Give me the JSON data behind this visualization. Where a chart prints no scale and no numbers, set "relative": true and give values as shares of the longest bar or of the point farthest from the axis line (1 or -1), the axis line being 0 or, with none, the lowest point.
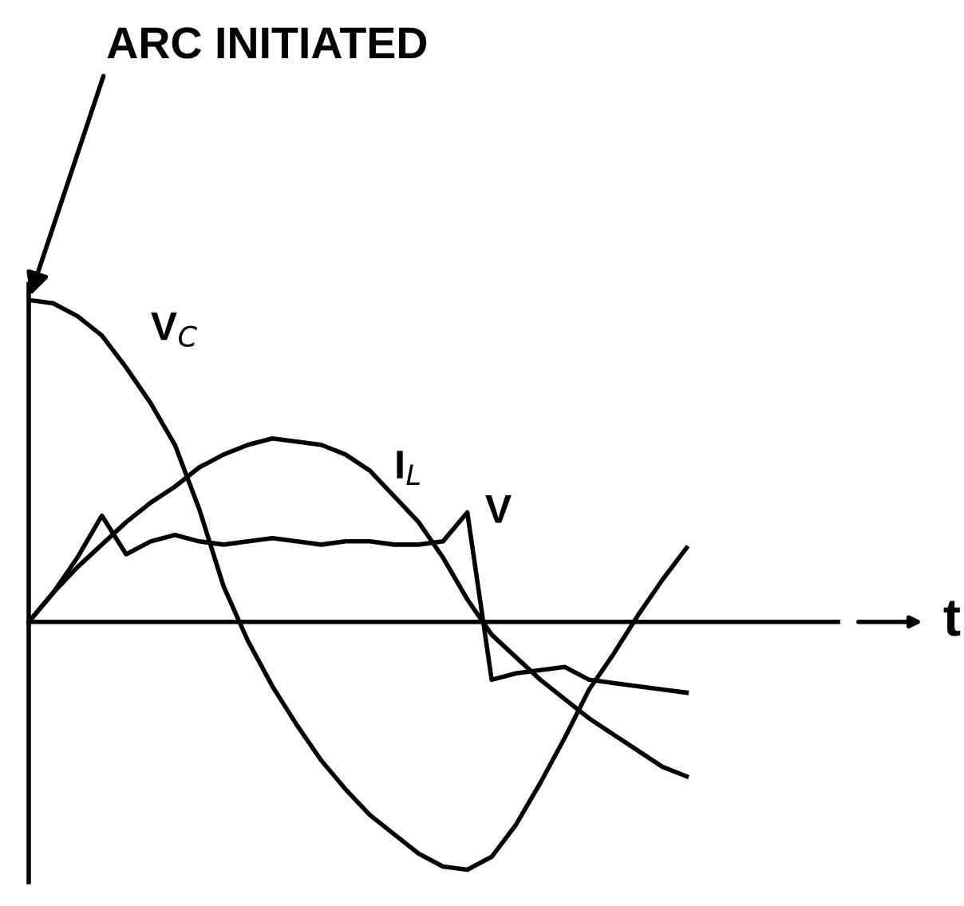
{
  "chart_data": {
    "type": "line",
    "relative": true,
    "xlabel": "t",
    "legend": false,
    "marker": "none",
    "line_style": "solid",
    "annotations": [
      "ARC INITIATED"
    ],
    "categories": [
      null,
      null,
      null,
      null,
      null,
      null,
      null,
      null,
      null,
      null,
      null,
      null,
      null,
      null,
      null,
      null,
      null,
      null,
      null,
      null,
      null,
      null,
      null,
      null,
      null,
      null,
      null,
      null
    ],
    "series": [
      {
        "name": "V$_{C}$",
        "color": "#000000",
        "values": [
          1,
          0.99,
          0.95,
          0.89,
          0.79,
          0.68,
          0.55,
          0.35,
          0.11,
          -0.06,
          -0.2,
          -0.32,
          -0.43,
          -0.52,
          -0.6,
          -0.66,
          -0.72,
          -0.76,
          -0.77,
          -0.73,
          -0.63,
          -0.5,
          -0.36,
          -0.21,
          -0.1,
          0.02,
          0.13,
          0.23
        ]
      },
      {
        "name": "I$_{L}$",
        "color": "#000000",
        "values": [
          0,
          0.09,
          0.17,
          0.24,
          0.31,
          0.37,
          0.42,
          0.48,
          0.52,
          0.55,
          0.57,
          0.56,
          0.55,
          0.52,
          0.47,
          0.39,
          0.31,
          0.2,
          0.07,
          -0.04,
          -0.11,
          -0.18,
          -0.24,
          -0.3,
          -0.35,
          -0.4,
          -0.45,
          -0.48
        ]
      },
      {
        "name": "V",
        "color": "#000000",
        "values": [
          0,
          0.09,
          0.2,
          0.33,
          0.21,
          0.25,
          0.27,
          0.25,
          0.24,
          0.25,
          0.26,
          0.25,
          0.24,
          0.25,
          0.25,
          0.24,
          0.24,
          0.25,
          0.34,
          -0.18,
          -0.16,
          -0.15,
          -0.14,
          -0.18,
          -0.19,
          -0.2,
          -0.21,
          -0.22
        ]
      }
    ]
  }
}
